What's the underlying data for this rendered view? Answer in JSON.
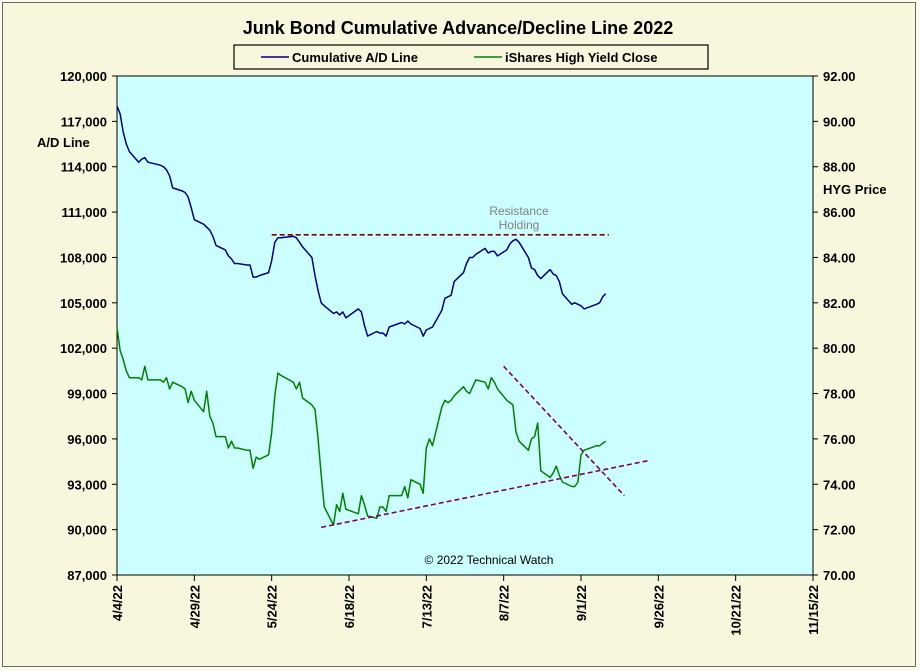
{
  "chart_data": {
    "type": "line",
    "title": "Junk Bond Cumulative  Advance/Decline  Line  2022",
    "left_axis": {
      "label": "A/D Line",
      "range": [
        87000,
        120000
      ],
      "ticks": [
        "120,000",
        "117,000",
        "114,000",
        "111,000",
        "108,000",
        "105,000",
        "102,000",
        "99,000",
        "96,000",
        "93,000",
        "90,000",
        "87,000"
      ]
    },
    "right_axis": {
      "label": "HYG Price",
      "range": [
        70,
        92
      ],
      "ticks": [
        "92.00",
        "90.00",
        "88.00",
        "86.00",
        "84.00",
        "82.00",
        "80.00",
        "78.00",
        "76.00",
        "74.00",
        "72.00",
        "70.00"
      ]
    },
    "x_axis": {
      "type": "date",
      "range": [
        "2022-04-04",
        "2022-11-15"
      ],
      "ticks": [
        "4/4/22",
        "4/29/22",
        "5/24/22",
        "6/18/22",
        "7/13/22",
        "8/7/22",
        "9/1/22",
        "9/26/22",
        "10/21/22",
        "11/15/22"
      ]
    },
    "legend": {
      "placement": "top-center",
      "entries": [
        "Cumulative A/D Line",
        "iShares High Yield Close"
      ]
    },
    "grid": false,
    "colors": {
      "ad": "#000080",
      "hyg": "#008000",
      "plot_bg": "#ccffff",
      "trend": "#800060",
      "resistance": "#800000"
    },
    "series": [
      {
        "name": "Cumulative A/D Line",
        "axis": "left",
        "x": [
          "2022-04-04",
          "2022-04-05",
          "2022-04-06",
          "2022-04-07",
          "2022-04-08",
          "2022-04-11",
          "2022-04-12",
          "2022-04-13",
          "2022-04-14",
          "2022-04-18",
          "2022-04-19",
          "2022-04-20",
          "2022-04-21",
          "2022-04-22",
          "2022-04-25",
          "2022-04-26",
          "2022-04-27",
          "2022-04-28",
          "2022-04-29",
          "2022-05-02",
          "2022-05-03",
          "2022-05-04",
          "2022-05-05",
          "2022-05-06",
          "2022-05-09",
          "2022-05-10",
          "2022-05-11",
          "2022-05-12",
          "2022-05-13",
          "2022-05-16",
          "2022-05-17",
          "2022-05-18",
          "2022-05-19",
          "2022-05-20",
          "2022-05-23",
          "2022-05-24",
          "2022-05-25",
          "2022-05-26",
          "2022-05-27",
          "2022-05-31",
          "2022-06-01",
          "2022-06-02",
          "2022-06-03",
          "2022-06-06",
          "2022-06-07",
          "2022-06-08",
          "2022-06-09",
          "2022-06-10",
          "2022-06-13",
          "2022-06-14",
          "2022-06-15",
          "2022-06-16",
          "2022-06-17",
          "2022-06-21",
          "2022-06-22",
          "2022-06-23",
          "2022-06-24",
          "2022-06-27",
          "2022-06-28",
          "2022-06-29",
          "2022-06-30",
          "2022-07-01",
          "2022-07-05",
          "2022-07-06",
          "2022-07-07",
          "2022-07-08",
          "2022-07-11",
          "2022-07-12",
          "2022-07-13",
          "2022-07-14",
          "2022-07-15",
          "2022-07-18",
          "2022-07-19",
          "2022-07-20",
          "2022-07-21",
          "2022-07-22",
          "2022-07-25",
          "2022-07-26",
          "2022-07-27",
          "2022-07-28",
          "2022-07-29",
          "2022-08-01",
          "2022-08-02",
          "2022-08-03",
          "2022-08-04",
          "2022-08-05",
          "2022-08-08",
          "2022-08-09",
          "2022-08-10",
          "2022-08-11",
          "2022-08-12",
          "2022-08-15",
          "2022-08-16",
          "2022-08-17",
          "2022-08-18",
          "2022-08-19",
          "2022-08-22",
          "2022-08-23",
          "2022-08-24",
          "2022-08-25",
          "2022-08-26",
          "2022-08-29",
          "2022-08-30",
          "2022-08-31",
          "2022-09-01",
          "2022-09-02",
          "2022-09-06",
          "2022-09-07",
          "2022-09-08",
          "2022-09-09"
        ],
        "values": [
          118000,
          117500,
          116300,
          115500,
          115000,
          114300,
          114500,
          114600,
          114300,
          114100,
          114000,
          113800,
          113400,
          112600,
          112400,
          112300,
          112000,
          111300,
          110500,
          110200,
          110000,
          109800,
          109400,
          108800,
          108500,
          108100,
          107900,
          107600,
          107600,
          107500,
          107500,
          106700,
          106700,
          106800,
          107000,
          107800,
          109000,
          109300,
          109300,
          109400,
          109300,
          109000,
          108700,
          108000,
          106800,
          105800,
          105000,
          104800,
          104300,
          104400,
          104200,
          104400,
          104000,
          104600,
          104400,
          103500,
          102800,
          103100,
          103000,
          103000,
          102800,
          103400,
          103700,
          103600,
          103800,
          103600,
          103300,
          102800,
          103200,
          103300,
          103400,
          104500,
          105300,
          105400,
          105500,
          106400,
          107000,
          107600,
          108000,
          108000,
          108200,
          108600,
          108300,
          108400,
          108400,
          108100,
          108500,
          108900,
          109100,
          109200,
          109000,
          108000,
          107300,
          107200,
          106800,
          106600,
          107200,
          106900,
          106800,
          106400,
          105600,
          104900,
          105000,
          104900,
          104800,
          104600,
          104900,
          105000,
          105400,
          105600
        ]
      },
      {
        "name": "iShares High Yield Close",
        "axis": "right",
        "x": [
          "2022-04-04",
          "2022-04-05",
          "2022-04-06",
          "2022-04-07",
          "2022-04-08",
          "2022-04-11",
          "2022-04-12",
          "2022-04-13",
          "2022-04-14",
          "2022-04-18",
          "2022-04-19",
          "2022-04-20",
          "2022-04-21",
          "2022-04-22",
          "2022-04-25",
          "2022-04-26",
          "2022-04-27",
          "2022-04-28",
          "2022-04-29",
          "2022-05-02",
          "2022-05-03",
          "2022-05-04",
          "2022-05-05",
          "2022-05-06",
          "2022-05-09",
          "2022-05-10",
          "2022-05-11",
          "2022-05-12",
          "2022-05-13",
          "2022-05-16",
          "2022-05-17",
          "2022-05-18",
          "2022-05-19",
          "2022-05-20",
          "2022-05-23",
          "2022-05-24",
          "2022-05-25",
          "2022-05-26",
          "2022-05-27",
          "2022-05-31",
          "2022-06-01",
          "2022-06-02",
          "2022-06-03",
          "2022-06-06",
          "2022-06-07",
          "2022-06-08",
          "2022-06-09",
          "2022-06-10",
          "2022-06-13",
          "2022-06-14",
          "2022-06-15",
          "2022-06-16",
          "2022-06-17",
          "2022-06-21",
          "2022-06-22",
          "2022-06-23",
          "2022-06-24",
          "2022-06-27",
          "2022-06-28",
          "2022-06-29",
          "2022-06-30",
          "2022-07-01",
          "2022-07-05",
          "2022-07-06",
          "2022-07-07",
          "2022-07-08",
          "2022-07-11",
          "2022-07-12",
          "2022-07-13",
          "2022-07-14",
          "2022-07-15",
          "2022-07-18",
          "2022-07-19",
          "2022-07-20",
          "2022-07-21",
          "2022-07-22",
          "2022-07-25",
          "2022-07-26",
          "2022-07-27",
          "2022-07-28",
          "2022-07-29",
          "2022-08-01",
          "2022-08-02",
          "2022-08-03",
          "2022-08-04",
          "2022-08-05",
          "2022-08-08",
          "2022-08-09",
          "2022-08-10",
          "2022-08-11",
          "2022-08-12",
          "2022-08-15",
          "2022-08-16",
          "2022-08-17",
          "2022-08-18",
          "2022-08-19",
          "2022-08-22",
          "2022-08-23",
          "2022-08-24",
          "2022-08-25",
          "2022-08-26",
          "2022-08-29",
          "2022-08-30",
          "2022-08-31",
          "2022-09-01",
          "2022-09-02",
          "2022-09-06",
          "2022-09-07",
          "2022-09-08",
          "2022-09-09"
        ],
        "values": [
          80.9,
          79.9,
          79.5,
          79.0,
          78.7,
          78.7,
          78.6,
          79.2,
          78.6,
          78.6,
          78.5,
          78.7,
          78.2,
          78.5,
          78.3,
          78.2,
          77.6,
          78.1,
          77.7,
          77.2,
          78.1,
          77.0,
          76.7,
          76.1,
          76.1,
          75.6,
          75.9,
          75.6,
          75.6,
          75.5,
          75.5,
          74.7,
          75.2,
          75.1,
          75.3,
          76.3,
          77.9,
          78.9,
          78.8,
          78.5,
          78.2,
          78.5,
          77.8,
          77.5,
          77.3,
          76.0,
          74.4,
          73.0,
          72.2,
          73.1,
          72.8,
          73.6,
          72.9,
          72.7,
          73.5,
          73.1,
          72.6,
          72.5,
          73.0,
          73.0,
          72.8,
          73.5,
          73.5,
          73.9,
          73.4,
          74.2,
          74.0,
          73.6,
          75.6,
          76.0,
          75.7,
          77.4,
          77.7,
          77.6,
          77.7,
          77.9,
          78.3,
          78.1,
          78.0,
          78.3,
          78.6,
          78.5,
          78.2,
          78.7,
          78.5,
          78.2,
          77.7,
          77.6,
          77.5,
          76.3,
          75.9,
          75.5,
          76.0,
          76.1,
          76.7,
          74.6,
          74.3,
          74.5,
          74.8,
          74.4,
          74.1,
          73.9,
          73.9,
          74.1,
          75.3,
          75.5,
          75.7,
          75.7,
          75.8,
          75.9
        ]
      }
    ],
    "annotations": [
      {
        "text": "Resistance",
        "line2": "Holding"
      },
      {
        "text": "© 2022 Technical Watch"
      }
    ]
  }
}
